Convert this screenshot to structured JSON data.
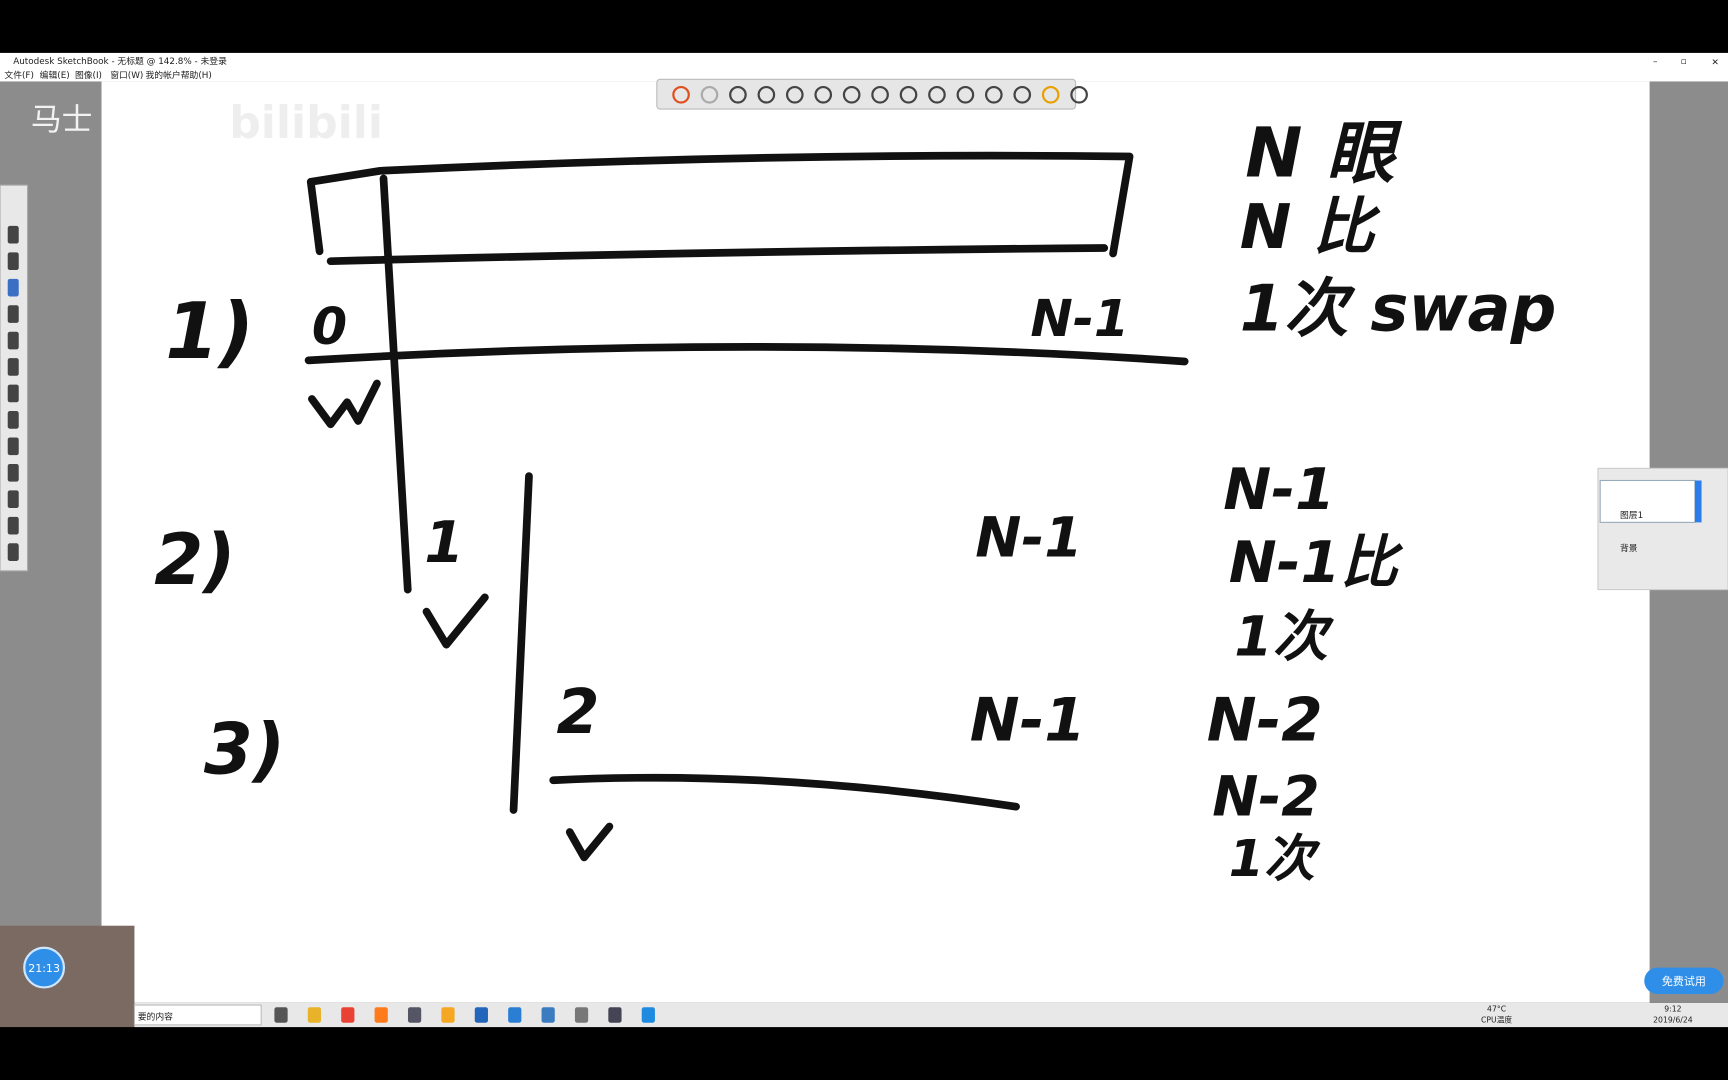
{
  "window": {
    "title": "Autodesk SketchBook - 无标题 @ 142.8% - 未登录",
    "menu": [
      "文件(F)",
      "编辑(E)",
      "图像(I)",
      "窗口(W)",
      "我的帐户",
      "帮助(H)"
    ]
  },
  "overlay": {
    "logo": "马士",
    "watermark": "bilibili",
    "timer": "21:13",
    "trial_button": "免费试用"
  },
  "sketch": {
    "steps": [
      "1)",
      "2)",
      "3)"
    ],
    "indices": [
      "0",
      "1",
      "2"
    ],
    "ranges": [
      "N-1",
      "N-1",
      "N-1"
    ],
    "notes": [
      "N 眼",
      "N 比",
      "1次 swap",
      "N-1",
      "N-1比",
      "1次",
      "N-2",
      "N-2",
      "1次"
    ]
  },
  "layers": {
    "layer": "图层1",
    "background": "背景"
  },
  "taskbar": {
    "search": "要的内容",
    "temp": "47°C",
    "temp_label": "CPU温度",
    "time": "9:12",
    "date": "2019/6/24"
  }
}
